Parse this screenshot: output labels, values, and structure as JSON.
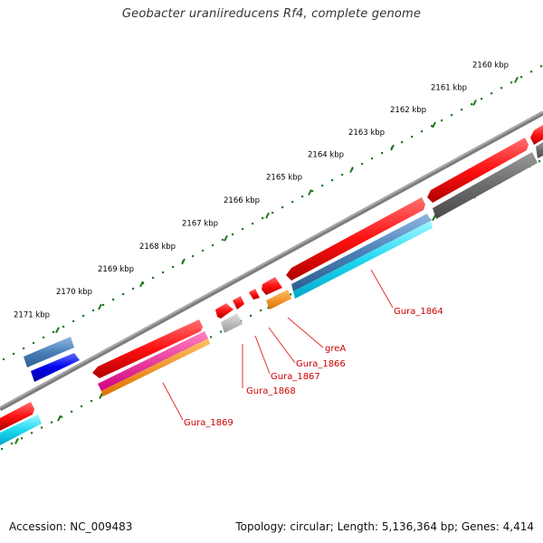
{
  "title": "Geobacter uraniireducens Rf4, complete genome",
  "footer": {
    "accession": "Accession: NC_009483",
    "summary": "Topology: circular; Length: 5,136,364 bp; Genes: 4,414"
  },
  "ruler": [
    {
      "label": "2160 kbp",
      "kbp": 2160
    },
    {
      "label": "2161 kbp",
      "kbp": 2161
    },
    {
      "label": "2162 kbp",
      "kbp": 2162
    },
    {
      "label": "2163 kbp",
      "kbp": 2163
    },
    {
      "label": "2164 kbp",
      "kbp": 2164
    },
    {
      "label": "2165 kbp",
      "kbp": 2165
    },
    {
      "label": "2166 kbp",
      "kbp": 2166
    },
    {
      "label": "2167 kbp",
      "kbp": 2167
    },
    {
      "label": "2168 kbp",
      "kbp": 2168
    },
    {
      "label": "2169 kbp",
      "kbp": 2169
    },
    {
      "label": "2170 kbp",
      "kbp": 2170
    },
    {
      "label": "2171 kbp",
      "kbp": 2171
    }
  ],
  "gene_labels": [
    {
      "text": "Gura_1864",
      "color": "#cc0000"
    },
    {
      "text": "greA",
      "color": "#cc0000"
    },
    {
      "text": "Gura_1866",
      "color": "#cc0000"
    },
    {
      "text": "Gura_1867",
      "color": "#cc0000"
    },
    {
      "text": "Gura_1868",
      "color": "#cc0000"
    },
    {
      "text": "Gura_1869",
      "color": "#cc0000"
    }
  ],
  "colors": {
    "backbone": "#7d7d7d",
    "tick": "#1f7a1f",
    "gene": "#ff0000",
    "label_line": "#e03030"
  }
}
